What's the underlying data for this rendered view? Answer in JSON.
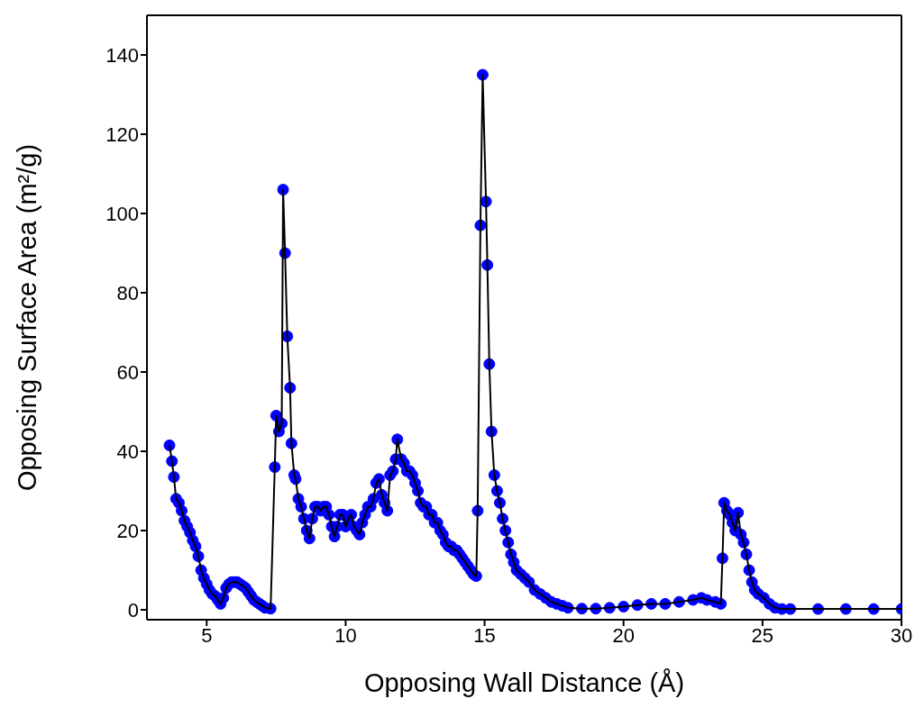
{
  "chart_data": {
    "type": "line",
    "xlabel": "Opposing Wall Distance (Å)",
    "ylabel": "Opposing Surface Area (m²/g)",
    "xlim": [
      2.85,
      30
    ],
    "ylim": [
      -2.5,
      150
    ],
    "xticks": [
      5,
      10,
      15,
      20,
      25,
      30
    ],
    "yticks": [
      0,
      20,
      40,
      60,
      80,
      100,
      120,
      140
    ],
    "grid": false,
    "legend": false,
    "marker": "circle",
    "line_style": "solid",
    "series": [
      {
        "color": "#0000ff",
        "x": [
          3.66,
          3.75,
          3.82,
          3.9,
          4.0,
          4.1,
          4.2,
          4.3,
          4.4,
          4.5,
          4.6,
          4.7,
          4.8,
          4.9,
          5.0,
          5.1,
          5.2,
          5.3,
          5.4,
          5.5,
          5.6,
          5.7,
          5.8,
          5.9,
          6.0,
          6.1,
          6.2,
          6.3,
          6.4,
          6.5,
          6.6,
          6.7,
          6.8,
          6.9,
          7.0,
          7.1,
          7.3,
          7.45,
          7.5,
          7.6,
          7.7,
          7.75,
          7.82,
          7.9,
          8.0,
          8.05,
          8.15,
          8.2,
          8.3,
          8.4,
          8.5,
          8.6,
          8.7,
          8.8,
          8.9,
          9.0,
          9.1,
          9.2,
          9.3,
          9.4,
          9.5,
          9.6,
          9.7,
          9.8,
          9.9,
          10.0,
          10.1,
          10.2,
          10.3,
          10.4,
          10.5,
          10.6,
          10.7,
          10.8,
          10.9,
          11.0,
          11.1,
          11.2,
          11.3,
          11.4,
          11.5,
          11.6,
          11.7,
          11.8,
          11.86,
          12.0,
          12.1,
          12.2,
          12.3,
          12.4,
          12.5,
          12.6,
          12.7,
          12.8,
          12.9,
          13.0,
          13.1,
          13.2,
          13.3,
          13.4,
          13.5,
          13.6,
          13.7,
          13.8,
          13.9,
          14.0,
          14.1,
          14.2,
          14.3,
          14.4,
          14.5,
          14.6,
          14.7,
          14.75,
          14.85,
          14.93,
          15.05,
          15.1,
          15.17,
          15.25,
          15.35,
          15.45,
          15.55,
          15.65,
          15.75,
          15.85,
          15.95,
          16.05,
          16.15,
          16.3,
          16.45,
          16.6,
          16.8,
          17.0,
          17.2,
          17.4,
          17.6,
          17.8,
          18.0,
          18.5,
          19.0,
          19.5,
          20.0,
          20.5,
          21.0,
          21.5,
          22.0,
          22.5,
          22.8,
          23.0,
          23.3,
          23.5,
          23.56,
          23.62,
          23.72,
          23.82,
          23.92,
          24.02,
          24.12,
          24.22,
          24.32,
          24.42,
          24.52,
          24.62,
          24.72,
          24.85,
          25.05,
          25.25,
          25.45,
          25.7,
          26.0,
          27.0,
          28.0,
          29.0,
          30.0
        ],
        "values": [
          41.5,
          37.5,
          33.5,
          28,
          27,
          25,
          22.5,
          21,
          19.5,
          17.5,
          16,
          13.5,
          10,
          8,
          6.5,
          5,
          4,
          3.5,
          2.5,
          1.5,
          3,
          5.5,
          6.5,
          7,
          7,
          7,
          6.5,
          6,
          5.5,
          4.5,
          3.5,
          2.5,
          2,
          1.5,
          1,
          0.5,
          0.3,
          36,
          49,
          45,
          47,
          106,
          90,
          69,
          56,
          42,
          34,
          33,
          28,
          26,
          23,
          20,
          18,
          23,
          26,
          26,
          25,
          26,
          26,
          24,
          21,
          18.5,
          21,
          24,
          24,
          21,
          23,
          24,
          21,
          20,
          19,
          22,
          24,
          26,
          26,
          28,
          32,
          33,
          29,
          27,
          25,
          34,
          35,
          38,
          43,
          38,
          37,
          35,
          35,
          34,
          32,
          30,
          27,
          26,
          26,
          24,
          24,
          22,
          22,
          20,
          19,
          17,
          16,
          16,
          15,
          15,
          14,
          13,
          12,
          11,
          10,
          9,
          8.5,
          25,
          97,
          135,
          103,
          87,
          62,
          45,
          34,
          30,
          27,
          23,
          20,
          17,
          14,
          12,
          10,
          9,
          8,
          7,
          5,
          4,
          3,
          2,
          1.5,
          1,
          0.5,
          0.3,
          0.3,
          0.5,
          0.8,
          1.2,
          1.5,
          1.5,
          2,
          2.5,
          3,
          2.5,
          2,
          1.5,
          13,
          27,
          25,
          24,
          22,
          20,
          24.5,
          19,
          17,
          14,
          10,
          7,
          5,
          4,
          3,
          1.5,
          0.5,
          0.2,
          0.2,
          0.2,
          0.2,
          0.2,
          0.2
        ]
      }
    ]
  }
}
